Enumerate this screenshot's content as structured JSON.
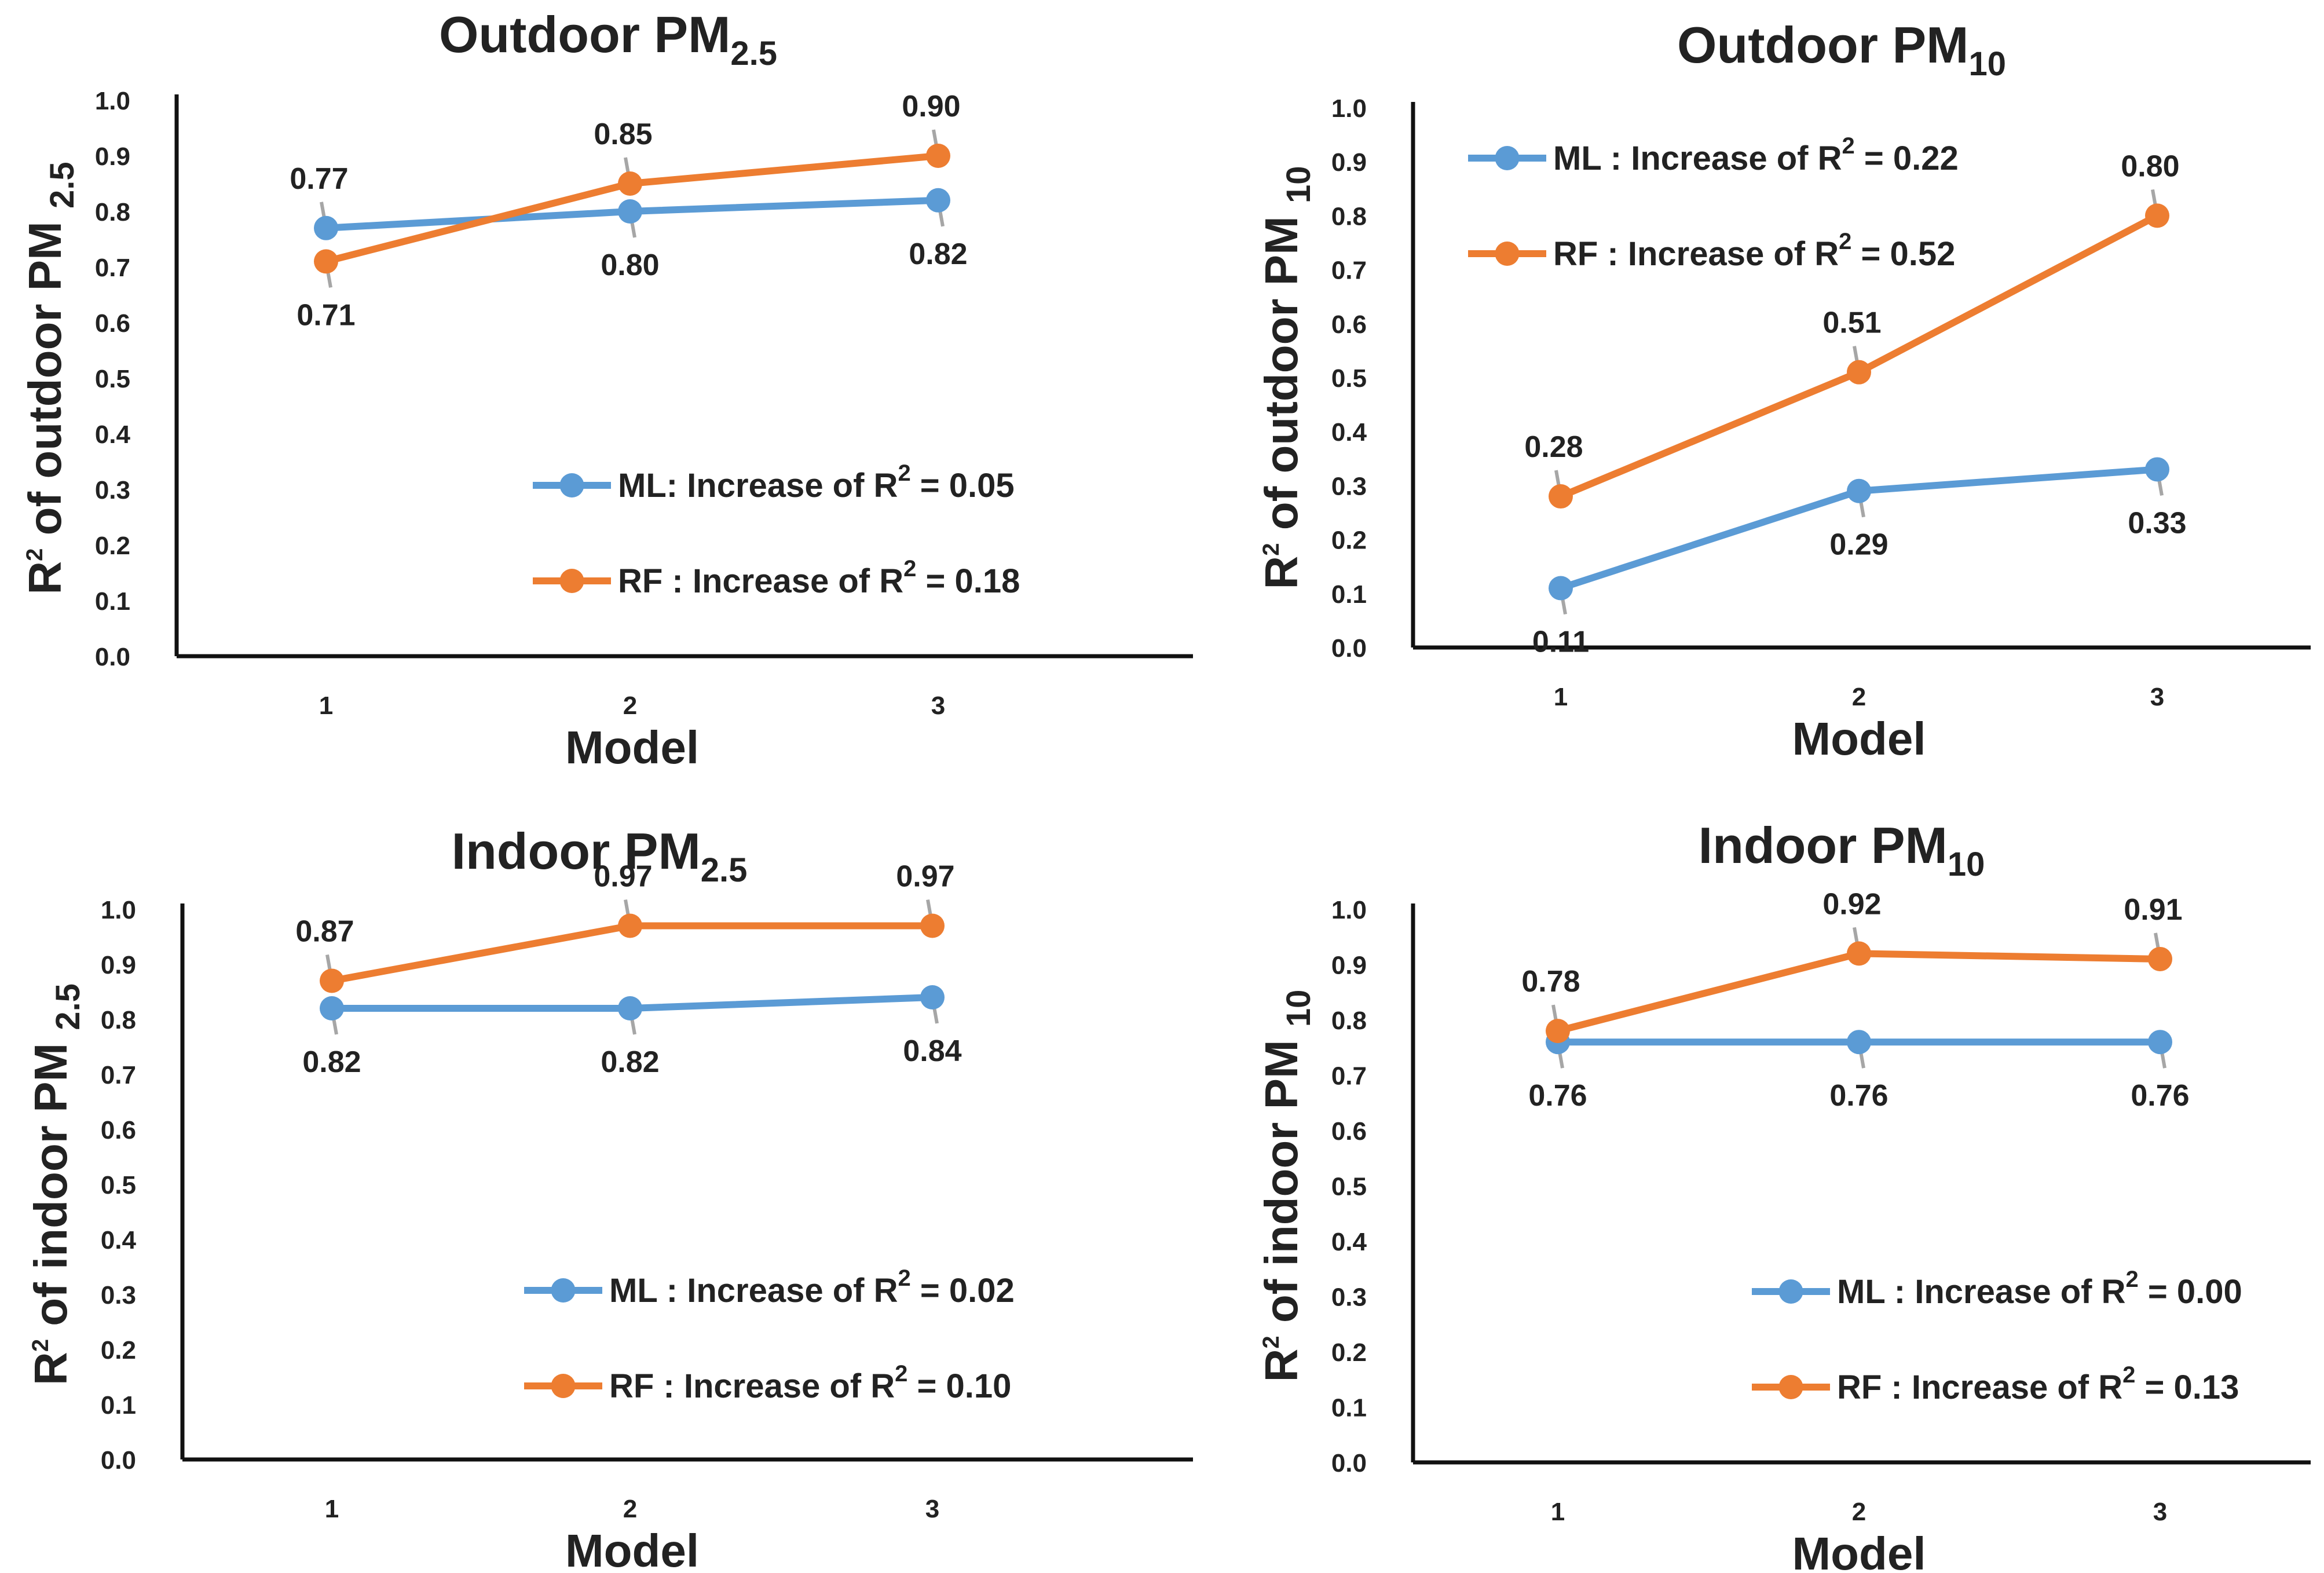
{
  "chart_data": [
    {
      "type": "line",
      "title_main": "Outdoor PM",
      "title_sub": "2.5",
      "ylabel_prefix": "R",
      "ylabel_sup": "2",
      "ylabel_mid": " of outdoor PM ",
      "ylabel_sub": "2.5",
      "xlabel": "Model",
      "categories": [
        "1",
        "2",
        "3"
      ],
      "ylim": [
        0,
        1
      ],
      "yticks": [
        "0.0",
        "0.1",
        "0.2",
        "0.3",
        "0.4",
        "0.5",
        "0.6",
        "0.7",
        "0.8",
        "0.9",
        "1.0"
      ],
      "legend_position": "lower-right",
      "series": [
        {
          "name": "ML",
          "color": "#5B9BD5",
          "values": [
            0.77,
            0.8,
            0.82
          ],
          "labels": [
            "0.77",
            "0.80",
            "0.82"
          ],
          "label_side": [
            "above",
            "below",
            "below"
          ],
          "legend_pre": "ML",
          "legend_sep": ": ",
          "legend_mid": "Increase of R",
          "legend_sup": "2",
          "legend_post": " = 0.05"
        },
        {
          "name": "RF",
          "color": "#ED7D31",
          "values": [
            0.71,
            0.85,
            0.9
          ],
          "labels": [
            "0.71",
            "0.85",
            "0.90"
          ],
          "label_side": [
            "below",
            "above",
            "above"
          ],
          "legend_pre": "RF",
          "legend_sep": "  : ",
          "legend_mid": "Increase of R",
          "legend_sup": "2",
          "legend_post": " = 0.18"
        }
      ]
    },
    {
      "type": "line",
      "title_main": "Outdoor PM",
      "title_sub": "10",
      "ylabel_prefix": "R",
      "ylabel_sup": "2",
      "ylabel_mid": " of outdoor PM ",
      "ylabel_sub": "10",
      "xlabel": "Model",
      "categories": [
        "1",
        "2",
        "3"
      ],
      "ylim": [
        0,
        1
      ],
      "yticks": [
        "0.0",
        "0.1",
        "0.2",
        "0.3",
        "0.4",
        "0.5",
        "0.6",
        "0.7",
        "0.8",
        "0.9",
        "1.0"
      ],
      "legend_position": "top-left",
      "series": [
        {
          "name": "ML",
          "color": "#5B9BD5",
          "values": [
            0.11,
            0.29,
            0.33
          ],
          "labels": [
            "0.11",
            "0.29",
            "0.33"
          ],
          "label_side": [
            "below",
            "below",
            "below"
          ],
          "legend_pre": "ML",
          "legend_sep": " : ",
          "legend_mid": "Increase of R",
          "legend_sup": "2",
          "legend_post": " = 0.22"
        },
        {
          "name": "RF",
          "color": "#ED7D31",
          "values": [
            0.28,
            0.51,
            0.8
          ],
          "labels": [
            "0.28",
            "0.51",
            "0.80"
          ],
          "label_side": [
            "above",
            "above",
            "above"
          ],
          "legend_pre": "RF",
          "legend_sep": "   : ",
          "legend_mid": "Increase of R",
          "legend_sup": "2",
          "legend_post": " = 0.52"
        }
      ]
    },
    {
      "type": "line",
      "title_main": "Indoor PM",
      "title_sub": "2.5",
      "ylabel_prefix": "R",
      "ylabel_sup": "2",
      "ylabel_mid": " of indoor PM ",
      "ylabel_sub": "2.5",
      "xlabel": "Model",
      "categories": [
        "1",
        "2",
        "3"
      ],
      "ylim": [
        0,
        1
      ],
      "yticks": [
        "0.0",
        "0.1",
        "0.2",
        "0.3",
        "0.4",
        "0.5",
        "0.6",
        "0.7",
        "0.8",
        "0.9",
        "1.0"
      ],
      "legend_position": "lower-right",
      "series": [
        {
          "name": "ML",
          "color": "#5B9BD5",
          "values": [
            0.82,
            0.82,
            0.84
          ],
          "labels": [
            "0.82",
            "0.82",
            "0.84"
          ],
          "label_side": [
            "below",
            "below",
            "below"
          ],
          "legend_pre": "ML",
          "legend_sep": " : ",
          "legend_mid": "Increase of R",
          "legend_sup": "2",
          "legend_post": " = 0.02"
        },
        {
          "name": "RF",
          "color": "#ED7D31",
          "values": [
            0.87,
            0.97,
            0.97
          ],
          "labels": [
            "0.87",
            "0.97",
            "0.97"
          ],
          "label_side": [
            "above",
            "above",
            "above"
          ],
          "legend_pre": "RF",
          "legend_sep": "   : ",
          "legend_mid": "Increase of R",
          "legend_sup": "2",
          "legend_post": " = 0.10"
        }
      ]
    },
    {
      "type": "line",
      "title_main": "Indoor PM",
      "title_sub": "10",
      "ylabel_prefix": "R",
      "ylabel_sup": "2",
      "ylabel_mid": " of indoor PM ",
      "ylabel_sub": "10",
      "xlabel": "Model",
      "categories": [
        "1",
        "2",
        "3"
      ],
      "ylim": [
        0,
        1
      ],
      "yticks": [
        "0.0",
        "0.1",
        "0.2",
        "0.3",
        "0.4",
        "0.5",
        "0.6",
        "0.7",
        "0.8",
        "0.9",
        "1.0"
      ],
      "legend_position": "lower-right",
      "series": [
        {
          "name": "ML",
          "color": "#5B9BD5",
          "values": [
            0.76,
            0.76,
            0.76
          ],
          "labels": [
            "0.76",
            "0.76",
            "0.76"
          ],
          "label_side": [
            "below",
            "below",
            "below"
          ],
          "legend_pre": "ML",
          "legend_sep": " : ",
          "legend_mid": "Increase of R",
          "legend_sup": "2",
          "legend_post": " = 0.00"
        },
        {
          "name": "RF",
          "color": "#ED7D31",
          "values": [
            0.78,
            0.92,
            0.91
          ],
          "labels": [
            "0.78",
            "0.92",
            "0.91"
          ],
          "label_side": [
            "above",
            "above",
            "above"
          ],
          "legend_pre": "RF",
          "legend_sep": "   : ",
          "legend_mid": "Increase of R",
          "legend_sup": "2",
          "legend_post": " = 0.13"
        }
      ]
    }
  ]
}
